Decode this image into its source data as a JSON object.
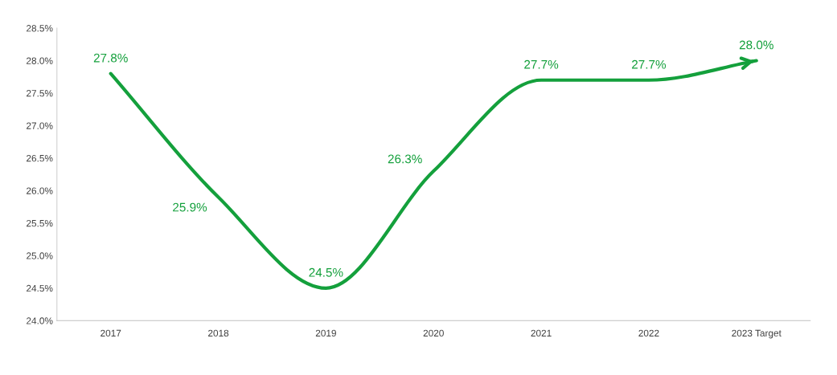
{
  "chart_data": {
    "type": "line",
    "categories": [
      "2017",
      "2018",
      "2019",
      "2020",
      "2021",
      "2022",
      "2023 Target"
    ],
    "series": [
      {
        "color": "#14a03c",
        "values": [
          27.8,
          25.9,
          24.5,
          26.3,
          27.7,
          27.7,
          28.0
        ],
        "value_labels": [
          "27.8%",
          "25.9%",
          "24.5%",
          "26.3%",
          "27.7%",
          "27.7%",
          "28.0%"
        ]
      }
    ],
    "ylim": [
      24.0,
      28.5
    ],
    "yticks": [
      {
        "value": 24.0,
        "label": "24.0%"
      },
      {
        "value": 24.5,
        "label": "24.5%"
      },
      {
        "value": 25.0,
        "label": "25.0%"
      },
      {
        "value": 25.5,
        "label": "25.5%"
      },
      {
        "value": 26.0,
        "label": "26.0%"
      },
      {
        "value": 26.5,
        "label": "26.5%"
      },
      {
        "value": 27.0,
        "label": "27.0%"
      },
      {
        "value": 27.5,
        "label": "27.5%"
      },
      {
        "value": 28.0,
        "label": "28.0%"
      },
      {
        "value": 28.5,
        "label": "28.5%"
      }
    ],
    "grid": false,
    "marker": "none",
    "line_style": "solid"
  }
}
